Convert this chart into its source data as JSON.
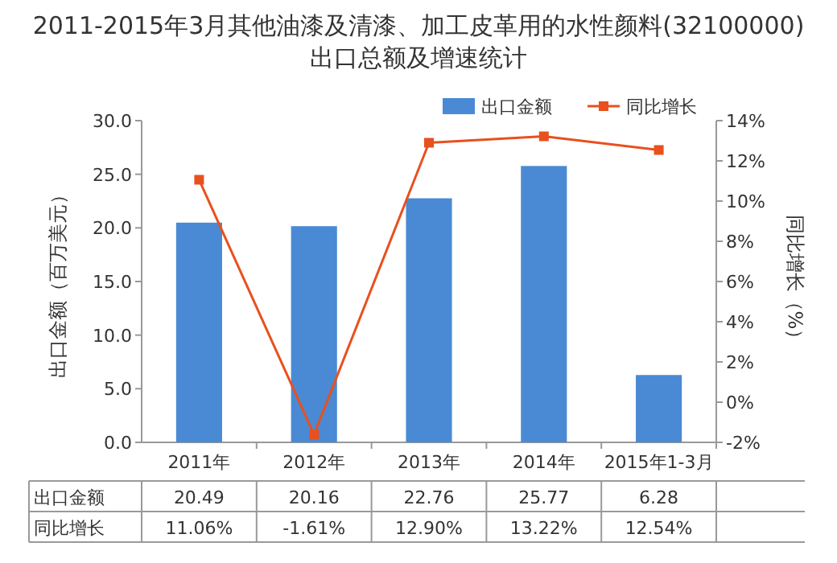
{
  "chart_data": {
    "type": "bar",
    "title": "2011-2015年3月其他油漆及清漆、加工皮革用的水性颜料(32100000)出口总额及增速统计",
    "categories": [
      "2011年",
      "2012年",
      "2013年",
      "2014年",
      "2015年1-3月"
    ],
    "series": [
      {
        "name": "出口金额",
        "color": "#4a8ad4",
        "values": [
          20.49,
          20.16,
          22.76,
          25.77,
          6.28
        ],
        "value_labels": [
          "20.49",
          "20.16",
          "22.76",
          "25.77",
          "6.28"
        ]
      },
      {
        "name": "同比增长",
        "type": "line",
        "axis": "y2",
        "color": "#e8501e",
        "values": [
          11.06,
          -1.61,
          12.9,
          13.22,
          12.54
        ],
        "value_labels": [
          "11.06%",
          "-1.61%",
          "12.90%",
          "13.22%",
          "12.54%"
        ]
      }
    ],
    "ylabel": "出口金额（百万美元）",
    "y2label": "同比增长（%）",
    "ylim": [
      0,
      30
    ],
    "yticks": [
      {
        "value": 0,
        "label": "0.0"
      },
      {
        "value": 5,
        "label": "5.0"
      },
      {
        "value": 10,
        "label": "10.0"
      },
      {
        "value": 15,
        "label": "15.0"
      },
      {
        "value": 20,
        "label": "20.0"
      },
      {
        "value": 25,
        "label": "25.0"
      },
      {
        "value": 30,
        "label": "30.0"
      }
    ],
    "y2lim": [
      -2,
      14
    ],
    "y2ticks": [
      {
        "value": -2,
        "label": "-2%"
      },
      {
        "value": 0,
        "label": "0%"
      },
      {
        "value": 2,
        "label": "2%"
      },
      {
        "value": 4,
        "label": "4%"
      },
      {
        "value": 6,
        "label": "6%"
      },
      {
        "value": 8,
        "label": "8%"
      },
      {
        "value": 10,
        "label": "10%"
      },
      {
        "value": 12,
        "label": "12%"
      },
      {
        "value": 14,
        "label": "14%"
      }
    ],
    "legend": "top right",
    "marker": "square"
  }
}
